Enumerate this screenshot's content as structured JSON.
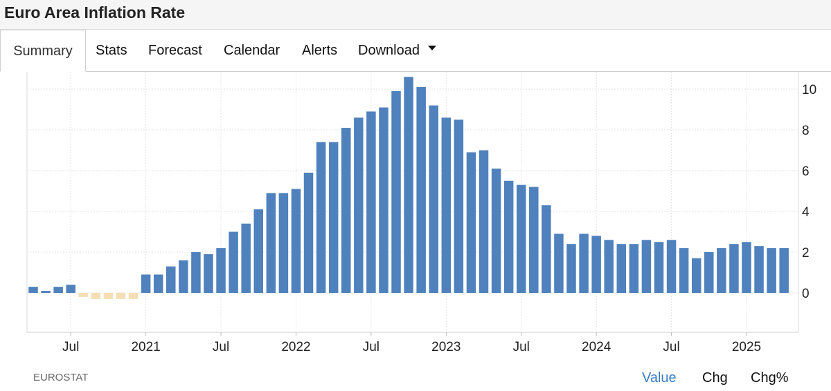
{
  "page": {
    "title": "Euro Area Inflation Rate"
  },
  "tabs": [
    {
      "label": "Summary",
      "active": true
    },
    {
      "label": "Stats"
    },
    {
      "label": "Forecast"
    },
    {
      "label": "Calendar"
    },
    {
      "label": "Alerts"
    },
    {
      "label": "Download",
      "has_dropdown": true
    }
  ],
  "footer": {
    "source": "EUROSTAT",
    "modes": [
      {
        "label": "Value",
        "active": true
      },
      {
        "label": "Chg"
      },
      {
        "label": "Chg%"
      }
    ]
  },
  "colors": {
    "positive_bar": "#4f81bd",
    "negative_bar": "#f5deb3",
    "active_mode": "#3a7cc4"
  },
  "chart_data": {
    "type": "bar",
    "title": "",
    "xlabel": "",
    "ylabel": "",
    "ylim": [
      -2,
      10.8
    ],
    "y_ticks": [
      0,
      2,
      4,
      6,
      8,
      10
    ],
    "grid": true,
    "x_start": "2020-04",
    "x_tick_labels": [
      {
        "date": "2020-07",
        "label": "Jul"
      },
      {
        "date": "2021-01",
        "label": "2021"
      },
      {
        "date": "2021-07",
        "label": "Jul"
      },
      {
        "date": "2022-01",
        "label": "2022"
      },
      {
        "date": "2022-07",
        "label": "Jul"
      },
      {
        "date": "2023-01",
        "label": "2023"
      },
      {
        "date": "2023-07",
        "label": "Jul"
      },
      {
        "date": "2024-01",
        "label": "2024"
      },
      {
        "date": "2024-07",
        "label": "Jul"
      },
      {
        "date": "2025-01",
        "label": "2025"
      }
    ],
    "series": [
      {
        "values": [
          0.3,
          0.1,
          0.3,
          0.4,
          -0.2,
          -0.3,
          -0.3,
          -0.3,
          -0.3,
          0.9,
          0.9,
          1.3,
          1.6,
          2.0,
          1.9,
          2.2,
          3.0,
          3.4,
          4.1,
          4.9,
          4.9,
          5.1,
          5.9,
          7.4,
          7.4,
          8.1,
          8.6,
          8.9,
          9.1,
          9.9,
          10.6,
          10.1,
          9.2,
          8.6,
          8.5,
          6.9,
          7.0,
          6.1,
          5.5,
          5.3,
          5.2,
          4.3,
          2.9,
          2.4,
          2.9,
          2.8,
          2.6,
          2.4,
          2.4,
          2.6,
          2.5,
          2.6,
          2.2,
          1.7,
          2.0,
          2.2,
          2.4,
          2.5,
          2.3,
          2.2,
          2.2
        ]
      }
    ]
  }
}
